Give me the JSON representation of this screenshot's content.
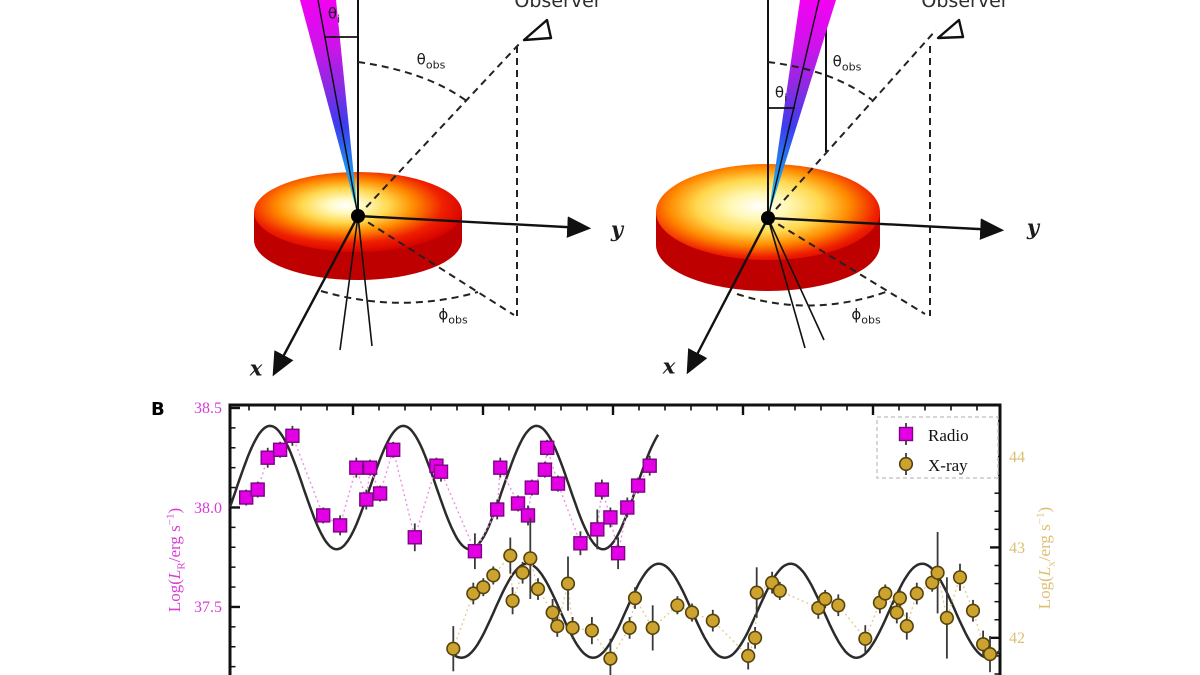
{
  "diagrams": {
    "observer_label": "Observer",
    "theta": "θ",
    "phi": "ϕ",
    "sub_i": "i",
    "sub_obs": "obs",
    "x_axis_label": "x",
    "y_axis_label": "y",
    "disk_outer_color": "#d40000",
    "disk_hot_color": "#ffd84d",
    "jet_top_color": "#f202f2",
    "jet_base_color": "#35dfe8"
  },
  "panel_b": {
    "panel_label": "B",
    "left_axis_label": {
      "pre": "Log(",
      "sym": "L",
      "sub": "R",
      "mid": "/erg s",
      "exp": "−1",
      "post": ")"
    },
    "right_axis_label": {
      "pre": "Log(",
      "sym": "L",
      "sub": "x",
      "mid": "/erg s",
      "exp": "−1",
      "post": ")"
    }
  },
  "chart_data": {
    "type": "scatter",
    "title": "",
    "xlabel": "",
    "x_axis": {
      "tick_labels_visible": false
    },
    "legend_position": "upper right",
    "fit_color": "#2b2b2b",
    "left_axis": {
      "label": "Log(L_R/erg s^-1)",
      "color": "#d63fd6",
      "ylim": [
        37.158,
        38.515
      ],
      "ticks": [
        38.5,
        38.0,
        37.5
      ],
      "tick_labels": [
        "38.5",
        "38.0",
        "37.5"
      ],
      "minor_step": 0.1
    },
    "right_axis": {
      "label": "Log(L_x/erg s^-1)",
      "color": "#ddbf72",
      "ylim": [
        41.589,
        44.575
      ],
      "ticks": [
        44,
        43,
        42
      ],
      "tick_labels": [
        "44",
        "43",
        "42"
      ],
      "minor_step": 0.2
    },
    "series": [
      {
        "name": "Radio",
        "marker": "square",
        "axis": "left",
        "color": "#e400e4",
        "edge_color": "#7d0586",
        "line_color": "#ef8fe4",
        "points": [
          [
            0.021,
            38.05,
            0.04
          ],
          [
            0.036,
            38.09,
            0.04
          ],
          [
            0.049,
            38.25,
            0.05
          ],
          [
            0.065,
            38.29,
            0.04
          ],
          [
            0.081,
            38.36,
            0.05
          ],
          [
            0.121,
            37.96,
            0.04
          ],
          [
            0.143,
            37.91,
            0.05
          ],
          [
            0.164,
            38.2,
            0.05
          ],
          [
            0.177,
            38.04,
            0.05
          ],
          [
            0.182,
            38.2,
            0.04
          ],
          [
            0.195,
            38.07,
            0.04
          ],
          [
            0.212,
            38.29,
            0.04
          ],
          [
            0.24,
            37.85,
            0.07
          ],
          [
            0.268,
            38.21,
            0.04
          ],
          [
            0.274,
            38.18,
            0.05
          ],
          [
            0.318,
            37.78,
            0.09
          ],
          [
            0.347,
            37.99,
            0.05
          ],
          [
            0.351,
            38.2,
            0.05
          ],
          [
            0.374,
            38.02,
            0.04
          ],
          [
            0.387,
            37.96,
            0.05
          ],
          [
            0.392,
            38.1,
            0.04
          ],
          [
            0.409,
            38.19,
            0.04
          ],
          [
            0.412,
            38.3,
            0.04
          ],
          [
            0.426,
            38.12,
            0.04
          ],
          [
            0.455,
            37.82,
            0.06
          ],
          [
            0.477,
            37.89,
            0.1
          ],
          [
            0.483,
            38.09,
            0.05
          ],
          [
            0.494,
            37.95,
            0.05
          ],
          [
            0.504,
            37.77,
            0.08
          ],
          [
            0.516,
            38.0,
            0.05
          ],
          [
            0.53,
            38.11,
            0.04
          ],
          [
            0.545,
            38.21,
            0.05
          ]
        ]
      },
      {
        "name": "X-ray",
        "marker": "circle",
        "axis": "right",
        "color": "#cda32f",
        "edge_color": "#55430d",
        "line_color": "#e4cd8e",
        "points": [
          [
            0.29,
            41.88,
            0.25
          ],
          [
            0.316,
            42.49,
            0.12
          ],
          [
            0.329,
            42.56,
            0.1
          ],
          [
            0.342,
            42.69,
            0.1
          ],
          [
            0.364,
            42.91,
            0.2
          ],
          [
            0.367,
            42.41,
            0.15
          ],
          [
            0.38,
            42.72,
            0.12
          ],
          [
            0.39,
            42.88,
            0.45
          ],
          [
            0.4,
            42.54,
            0.12
          ],
          [
            0.419,
            42.28,
            0.15
          ],
          [
            0.425,
            42.13,
            0.12
          ],
          [
            0.439,
            42.6,
            0.3
          ],
          [
            0.445,
            42.11,
            0.12
          ],
          [
            0.47,
            42.08,
            0.15
          ],
          [
            0.494,
            41.77,
            0.22
          ],
          [
            0.519,
            42.11,
            0.12
          ],
          [
            0.526,
            42.44,
            0.12
          ],
          [
            0.549,
            42.11,
            0.25
          ],
          [
            0.581,
            42.36,
            0.1
          ],
          [
            0.6,
            42.28,
            0.1
          ],
          [
            0.627,
            42.19,
            0.12
          ],
          [
            0.673,
            41.8,
            0.15
          ],
          [
            0.682,
            42.0,
            0.12
          ],
          [
            0.684,
            42.5,
            0.28
          ],
          [
            0.704,
            42.61,
            0.12
          ],
          [
            0.714,
            42.52,
            0.1
          ],
          [
            0.764,
            42.33,
            0.12
          ],
          [
            0.773,
            42.43,
            0.1
          ],
          [
            0.79,
            42.36,
            0.12
          ],
          [
            0.825,
            41.99,
            0.15
          ],
          [
            0.844,
            42.39,
            0.12
          ],
          [
            0.851,
            42.49,
            0.1
          ],
          [
            0.866,
            42.28,
            0.12
          ],
          [
            0.87,
            42.44,
            0.1
          ],
          [
            0.879,
            42.13,
            0.15
          ],
          [
            0.892,
            42.49,
            0.12
          ],
          [
            0.912,
            42.61,
            0.1
          ],
          [
            0.919,
            42.72,
            0.45
          ],
          [
            0.931,
            42.22,
            0.45
          ],
          [
            0.948,
            42.67,
            0.15
          ],
          [
            0.965,
            42.3,
            0.12
          ],
          [
            0.978,
            41.93,
            0.15
          ],
          [
            0.987,
            41.82,
            0.2
          ]
        ]
      }
    ],
    "models": [
      {
        "series": "Radio",
        "axis": "left",
        "mean": 38.1,
        "amplitude": 0.31,
        "period": 0.173,
        "peak_x": 0.052,
        "x_start": 0.0,
        "x_end": 0.556
      },
      {
        "series": "X-ray",
        "axis": "right",
        "mean": 42.3,
        "amplitude": 0.52,
        "period": 0.171,
        "peak_x": 0.386,
        "x_start": 0.292,
        "x_end": 1.0
      }
    ]
  }
}
